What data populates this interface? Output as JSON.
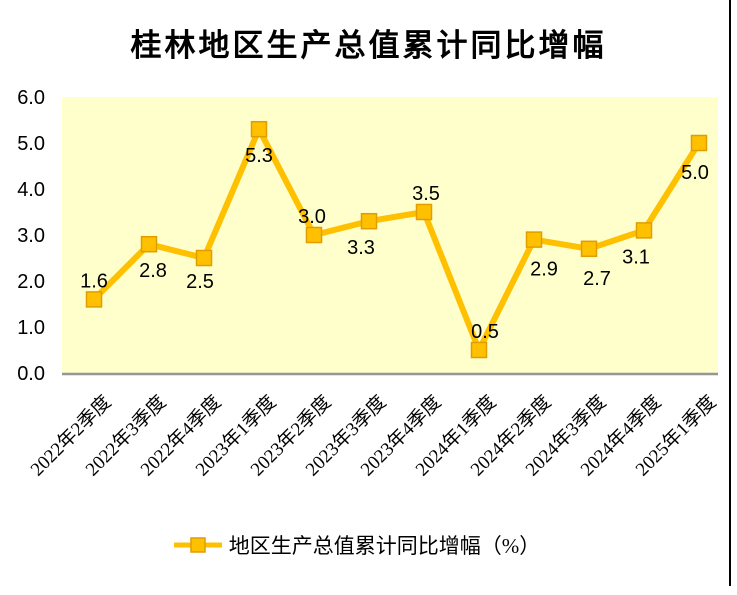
{
  "title": "桂林地区生产总值累计同比增幅",
  "legend": {
    "label": "地区生产总值累计同比增幅（%）"
  },
  "colors": {
    "line": "#FFC000",
    "marker_fill": "#FFC000",
    "marker_border": "#E09D00",
    "plot_bg": "#FFFFCC",
    "axis_line": "#969696",
    "label_text": "#000000",
    "border_right": "#000000"
  },
  "chart_data": {
    "type": "line",
    "title": "桂林地区生产总值累计同比增幅",
    "categories": [
      "2022年2季度",
      "2022年3季度",
      "2022年4季度",
      "2023年1季度",
      "2023年2季度",
      "2023年3季度",
      "2023年4季度",
      "2024年1季度",
      "2024年2季度",
      "2024年3季度",
      "2024年4季度",
      "2025年1季度"
    ],
    "series": [
      {
        "name": "地区生产总值累计同比增幅（%）",
        "values": [
          1.6,
          2.8,
          2.5,
          5.3,
          3.0,
          3.3,
          3.5,
          0.5,
          2.9,
          2.7,
          3.1,
          5.0
        ]
      }
    ],
    "data_labels": [
      "1.6",
      "2.8",
      "2.5",
      "5.3",
      "3.0",
      "3.3",
      "3.5",
      "0.5",
      "2.9",
      "2.7",
      "3.1",
      "5.0"
    ],
    "ylim": [
      0,
      6
    ],
    "ytick_step": 1,
    "ytick_labels": [
      "0.0",
      "1.0",
      "2.0",
      "3.0",
      "4.0",
      "5.0",
      "6.0"
    ],
    "xlabel": "",
    "ylabel": "",
    "grid": false,
    "marker": "square",
    "legend_position": "bottom"
  }
}
